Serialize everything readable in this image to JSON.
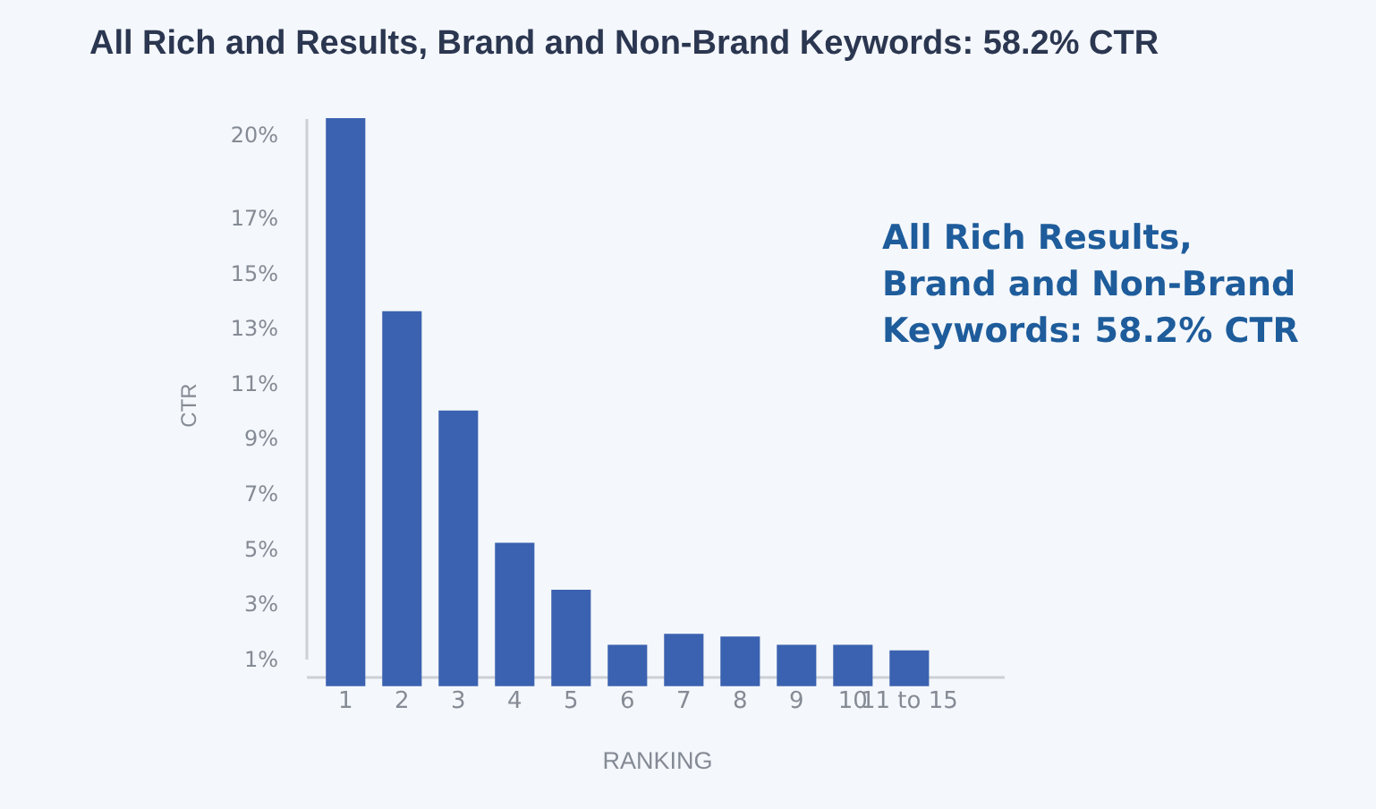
{
  "chart_data": {
    "type": "bar",
    "title": "All Rich and Results, Brand and Non-Brand Keywords: 58.2% CTR",
    "xlabel": "RANKING",
    "ylabel": "CTR",
    "categories": [
      "1",
      "2",
      "3",
      "4",
      "5",
      "6",
      "7",
      "8",
      "9",
      "10",
      "11 to 15"
    ],
    "values": [
      20.6,
      13.6,
      10.0,
      5.2,
      3.5,
      1.5,
      1.9,
      1.8,
      1.5,
      1.5,
      1.3
    ],
    "color": "#3b62b0",
    "ylim": [
      1,
      20.6
    ],
    "yticks": [
      {
        "value": 1,
        "label": "1%"
      },
      {
        "value": 3,
        "label": "3%"
      },
      {
        "value": 5,
        "label": "5%"
      },
      {
        "value": 7,
        "label": "7%"
      },
      {
        "value": 9,
        "label": "9%"
      },
      {
        "value": 11,
        "label": "11%"
      },
      {
        "value": 13,
        "label": "13%"
      },
      {
        "value": 15,
        "label": "15%"
      },
      {
        "value": 17,
        "label": "17%"
      },
      {
        "value": 20,
        "label": "20%"
      }
    ],
    "annotations": [
      "All Rich Results,\nBrand and Non-Brand\nKeywords: 58.2% CTR"
    ]
  }
}
